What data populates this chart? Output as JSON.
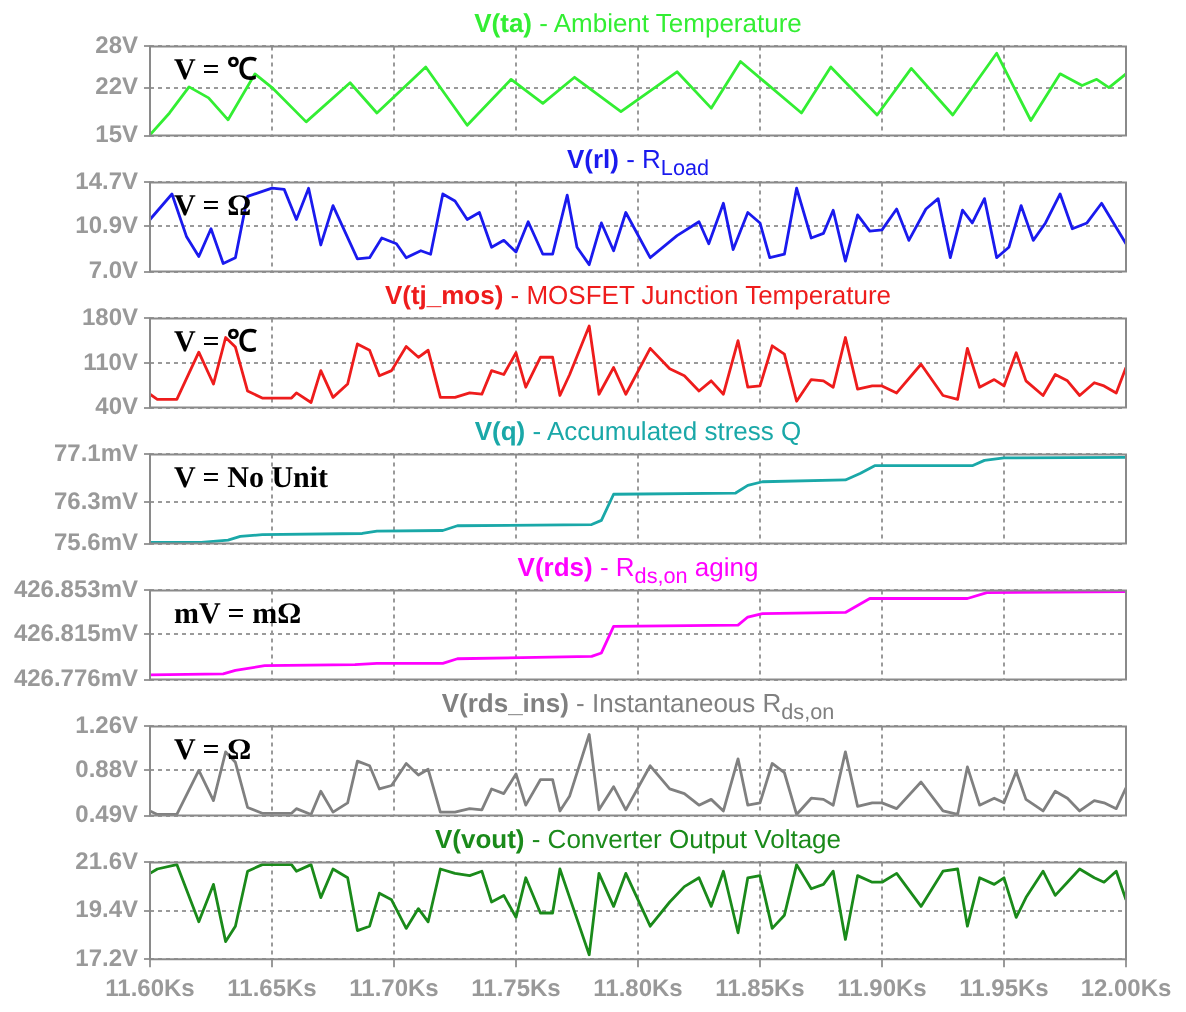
{
  "chart_data": [
    {
      "type": "line",
      "title": "V(ta) - Ambient Temperature",
      "color": "#33ee33",
      "annotations": [
        "V = ℃"
      ],
      "grid": true,
      "tick_labels": "y",
      "xlim": [
        11.6,
        12.0
      ],
      "xticks": [
        11.6,
        11.65,
        11.7,
        11.75,
        11.8,
        11.85,
        11.9,
        11.95,
        12.0
      ],
      "ylim": [
        15,
        28
      ],
      "yticks": [
        {
          "value": 15,
          "label": "15V"
        },
        {
          "value": 22,
          "label": "22V"
        },
        {
          "value": 28,
          "label": "28V"
        }
      ],
      "x": [
        11.6,
        11.608,
        11.616,
        11.624,
        11.632,
        11.643,
        11.65,
        11.664,
        11.682,
        11.693,
        11.713,
        11.73,
        11.748,
        11.761,
        11.774,
        11.793,
        11.816,
        11.83,
        11.842,
        11.867,
        11.879,
        11.898,
        11.912,
        11.929,
        11.947,
        11.961,
        11.973,
        11.982,
        11.988,
        11.993,
        12.0
      ],
      "values": [
        15.1,
        18.3,
        22.1,
        20.5,
        17.3,
        24,
        22,
        17,
        22.7,
        18.3,
        25,
        16.5,
        23.2,
        19.7,
        23.5,
        18.5,
        24.3,
        19,
        25.8,
        18.3,
        25,
        18,
        24.8,
        18,
        27,
        17.2,
        24,
        22.3,
        23.2,
        22,
        24
      ]
    },
    {
      "type": "line",
      "title": "V(rl) - R$_{Load}$",
      "color": "#1a1aee",
      "annotations": [
        "V = Ω"
      ],
      "grid": true,
      "tick_labels": "y",
      "xlim": [
        11.6,
        12.0
      ],
      "xticks": [
        11.6,
        11.65,
        11.7,
        11.75,
        11.8,
        11.85,
        11.9,
        11.95,
        12.0
      ],
      "ylim": [
        7.0,
        14.7
      ],
      "yticks": [
        {
          "value": 7.0,
          "label": "7.0V"
        },
        {
          "value": 10.9,
          "label": "10.9V"
        },
        {
          "value": 14.7,
          "label": "14.7V"
        }
      ],
      "x": [
        11.6,
        11.609,
        11.615,
        11.62,
        11.625,
        11.63,
        11.635,
        11.64,
        11.65,
        11.655,
        11.66,
        11.665,
        11.67,
        11.675,
        11.685,
        11.69,
        11.695,
        11.701,
        11.705,
        11.711,
        11.715,
        11.72,
        11.725,
        11.73,
        11.735,
        11.74,
        11.745,
        11.75,
        11.755,
        11.761,
        11.765,
        11.771,
        11.775,
        11.78,
        11.785,
        11.79,
        11.795,
        11.805,
        11.816,
        11.825,
        11.829,
        11.835,
        11.839,
        11.845,
        11.85,
        11.854,
        11.86,
        11.865,
        11.871,
        11.876,
        11.88,
        11.885,
        11.89,
        11.895,
        11.9,
        11.906,
        11.911,
        11.918,
        11.923,
        11.928,
        11.933,
        11.937,
        11.942,
        11.947,
        11.952,
        11.957,
        11.962,
        11.967,
        11.973,
        11.978,
        11.984,
        11.99,
        12.0
      ],
      "values": [
        11.5,
        13.7,
        10.0,
        8.3,
        10.7,
        7.7,
        8.2,
        13.5,
        14.2,
        14.1,
        11.5,
        14.2,
        9.3,
        12.7,
        8.1,
        8.2,
        9.9,
        9.4,
        8.2,
        8.8,
        8.5,
        13.7,
        13.1,
        11.5,
        12.1,
        9.1,
        9.7,
        8.7,
        11.3,
        8.5,
        8.5,
        13.6,
        9.1,
        7.6,
        11.2,
        8.8,
        12.1,
        8.2,
        10.1,
        11.3,
        9.4,
        12.9,
        8.9,
        12.1,
        11.2,
        8.2,
        8.5,
        14.2,
        9.9,
        10.3,
        12.3,
        7.9,
        11.9,
        10.5,
        10.6,
        12.4,
        9.7,
        12.4,
        13.3,
        8.2,
        12.3,
        11.2,
        13.3,
        8.2,
        9.1,
        12.7,
        9.7,
        11.2,
        13.7,
        10.7,
        11.2,
        12.9,
        9.4
      ]
    },
    {
      "type": "line",
      "title": "V(tj_mos) - MOSFET Junction Temperature",
      "color": "#ee1c1c",
      "annotations": [
        "V = ℃"
      ],
      "grid": true,
      "tick_labels": "y",
      "xlim": [
        11.6,
        12.0
      ],
      "xticks": [
        11.6,
        11.65,
        11.7,
        11.75,
        11.8,
        11.85,
        11.9,
        11.95,
        12.0
      ],
      "ylim": [
        40,
        180
      ],
      "yticks": [
        {
          "value": 40,
          "label": "40V"
        },
        {
          "value": 110,
          "label": "110V"
        },
        {
          "value": 180,
          "label": "180V"
        }
      ],
      "x": [
        11.6,
        11.603,
        11.611,
        11.62,
        11.626,
        11.631,
        11.635,
        11.64,
        11.646,
        11.658,
        11.66,
        11.666,
        11.67,
        11.675,
        11.681,
        11.685,
        11.69,
        11.694,
        11.699,
        11.705,
        11.71,
        11.714,
        11.719,
        11.725,
        11.731,
        11.736,
        11.74,
        11.745,
        11.75,
        11.754,
        11.76,
        11.765,
        11.768,
        11.772,
        11.78,
        11.784,
        11.79,
        11.795,
        11.805,
        11.813,
        11.819,
        11.825,
        11.83,
        11.835,
        11.841,
        11.845,
        11.85,
        11.855,
        11.86,
        11.865,
        11.871,
        11.876,
        11.88,
        11.885,
        11.89,
        11.896,
        11.9,
        11.906,
        11.916,
        11.925,
        11.931,
        11.935,
        11.94,
        11.946,
        11.95,
        11.955,
        11.959,
        11.966,
        11.971,
        11.976,
        11.981,
        11.987,
        11.991,
        11.996,
        12.0
      ],
      "values": [
        61,
        53,
        53,
        127,
        77,
        150,
        135,
        66,
        55,
        55,
        63,
        48,
        98,
        56,
        77,
        140,
        130,
        90,
        98,
        136,
        119,
        130,
        56,
        56,
        63,
        61,
        98,
        92,
        126,
        72,
        119,
        119,
        59,
        92,
        168,
        61,
        103,
        61,
        133,
        101,
        90,
        66,
        82,
        61,
        145,
        72,
        74,
        137,
        124,
        50,
        84,
        82,
        72,
        150,
        69,
        74,
        74,
        63,
        108,
        59,
        53,
        133,
        72,
        84,
        74,
        126,
        82,
        59,
        92,
        82,
        59,
        79,
        74,
        63,
        103
      ]
    },
    {
      "type": "line",
      "title": "V(q) - Accumulated stress Q",
      "color": "#1aa8a8",
      "annotations": [
        "V = No Unit"
      ],
      "grid": true,
      "tick_labels": "y",
      "xlim": [
        11.6,
        12.0
      ],
      "xticks": [
        11.6,
        11.65,
        11.7,
        11.75,
        11.8,
        11.85,
        11.9,
        11.95,
        12.0
      ],
      "ylim": [
        75.6,
        77.1
      ],
      "yticks": [
        {
          "value": 75.6,
          "label": "75.6mV"
        },
        {
          "value": 76.3,
          "label": "76.3mV"
        },
        {
          "value": 77.1,
          "label": "77.1mV"
        }
      ],
      "x": [
        11.6,
        11.621,
        11.632,
        11.637,
        11.646,
        11.687,
        11.693,
        11.72,
        11.726,
        11.781,
        11.785,
        11.79,
        11.84,
        11.845,
        11.851,
        11.885,
        11.891,
        11.897,
        11.937,
        11.942,
        11.95,
        12.0
      ],
      "values": [
        75.62,
        75.62,
        75.66,
        75.72,
        75.75,
        75.77,
        75.81,
        75.82,
        75.9,
        75.92,
        75.99,
        76.43,
        76.45,
        76.58,
        76.64,
        76.67,
        76.78,
        76.91,
        76.91,
        77.0,
        77.04,
        77.05
      ]
    },
    {
      "type": "line",
      "title": "V(rds) - R$_{ds,on}$ aging",
      "color": "#ff00ff",
      "annotations": [
        "mV = mΩ"
      ],
      "grid": true,
      "tick_labels": "y",
      "xlim": [
        11.6,
        12.0
      ],
      "xticks": [
        11.6,
        11.65,
        11.7,
        11.75,
        11.8,
        11.85,
        11.9,
        11.95,
        12.0
      ],
      "ylim": [
        426.776,
        426.853
      ],
      "yticks": [
        {
          "value": 426.776,
          "label": "426.776mV"
        },
        {
          "value": 426.815,
          "label": "426.815mV"
        },
        {
          "value": 426.853,
          "label": "426.853mV"
        }
      ],
      "x": [
        11.6,
        11.63,
        11.635,
        11.647,
        11.684,
        11.693,
        11.72,
        11.726,
        11.781,
        11.785,
        11.79,
        11.841,
        11.845,
        11.851,
        11.885,
        11.895,
        11.935,
        11.943,
        12.0
      ],
      "values": [
        426.78,
        426.781,
        426.784,
        426.788,
        426.789,
        426.79,
        426.79,
        426.794,
        426.796,
        426.799,
        426.822,
        426.823,
        426.83,
        426.833,
        426.834,
        426.846,
        426.846,
        426.851,
        426.852
      ]
    },
    {
      "type": "line",
      "title": "V(rds_ins) - Instantaneous R$_{ds,on}$",
      "color": "#808080",
      "annotations": [
        "V = Ω"
      ],
      "grid": true,
      "tick_labels": "y",
      "xlim": [
        11.6,
        12.0
      ],
      "xticks": [
        11.6,
        11.65,
        11.7,
        11.75,
        11.8,
        11.85,
        11.9,
        11.95,
        12.0
      ],
      "ylim": [
        0.49,
        1.26
      ],
      "yticks": [
        {
          "value": 0.49,
          "label": "0.49V"
        },
        {
          "value": 0.88,
          "label": "0.88V"
        },
        {
          "value": 1.26,
          "label": "1.26V"
        }
      ],
      "x": [
        11.6,
        11.603,
        11.611,
        11.62,
        11.626,
        11.631,
        11.635,
        11.64,
        11.646,
        11.658,
        11.66,
        11.666,
        11.67,
        11.675,
        11.681,
        11.685,
        11.69,
        11.694,
        11.699,
        11.705,
        11.71,
        11.714,
        11.719,
        11.725,
        11.731,
        11.736,
        11.74,
        11.745,
        11.75,
        11.754,
        11.76,
        11.765,
        11.768,
        11.772,
        11.78,
        11.784,
        11.79,
        11.795,
        11.805,
        11.813,
        11.819,
        11.825,
        11.83,
        11.835,
        11.841,
        11.845,
        11.85,
        11.855,
        11.86,
        11.865,
        11.871,
        11.876,
        11.88,
        11.885,
        11.89,
        11.896,
        11.9,
        11.906,
        11.916,
        11.925,
        11.931,
        11.935,
        11.94,
        11.946,
        11.95,
        11.955,
        11.959,
        11.966,
        11.971,
        11.976,
        11.981,
        11.987,
        11.991,
        11.996,
        12.0
      ],
      "values": [
        0.53,
        0.5,
        0.5,
        0.88,
        0.62,
        1.04,
        0.95,
        0.56,
        0.51,
        0.51,
        0.55,
        0.5,
        0.7,
        0.52,
        0.6,
        0.96,
        0.92,
        0.72,
        0.75,
        0.94,
        0.84,
        0.89,
        0.52,
        0.52,
        0.55,
        0.54,
        0.72,
        0.68,
        0.85,
        0.58,
        0.8,
        0.8,
        0.53,
        0.66,
        1.19,
        0.54,
        0.74,
        0.54,
        0.92,
        0.72,
        0.68,
        0.58,
        0.63,
        0.53,
        0.98,
        0.58,
        0.6,
        0.94,
        0.86,
        0.5,
        0.64,
        0.63,
        0.58,
        1.04,
        0.57,
        0.6,
        0.6,
        0.55,
        0.78,
        0.53,
        0.5,
        0.91,
        0.58,
        0.64,
        0.6,
        0.87,
        0.63,
        0.53,
        0.7,
        0.64,
        0.53,
        0.62,
        0.6,
        0.55,
        0.73
      ]
    },
    {
      "type": "line",
      "title": "V(vout) - Converter Output Voltage",
      "color": "#1a8a1a",
      "grid": true,
      "xlim": [
        11.6,
        12.0
      ],
      "xticks": [
        {
          "value": 11.6,
          "label": "11.60Ks"
        },
        {
          "value": 11.65,
          "label": "11.65Ks"
        },
        {
          "value": 11.7,
          "label": "11.70Ks"
        },
        {
          "value": 11.75,
          "label": "11.75Ks"
        },
        {
          "value": 11.8,
          "label": "11.80Ks"
        },
        {
          "value": 11.85,
          "label": "11.85Ks"
        },
        {
          "value": 11.9,
          "label": "11.90Ks"
        },
        {
          "value": 11.95,
          "label": "11.95Ks"
        },
        {
          "value": 12.0,
          "label": "12.00Ks"
        }
      ],
      "ylim": [
        17.2,
        21.6
      ],
      "yticks": [
        {
          "value": 17.2,
          "label": "17.2V"
        },
        {
          "value": 19.4,
          "label": "19.4V"
        },
        {
          "value": 21.6,
          "label": "21.6V"
        }
      ],
      "x": [
        11.6,
        11.603,
        11.611,
        11.62,
        11.626,
        11.631,
        11.635,
        11.64,
        11.646,
        11.658,
        11.66,
        11.666,
        11.67,
        11.675,
        11.681,
        11.685,
        11.69,
        11.694,
        11.699,
        11.705,
        11.71,
        11.714,
        11.719,
        11.725,
        11.731,
        11.736,
        11.74,
        11.745,
        11.75,
        11.754,
        11.76,
        11.765,
        11.768,
        11.772,
        11.78,
        11.784,
        11.79,
        11.795,
        11.805,
        11.813,
        11.819,
        11.825,
        11.83,
        11.835,
        11.841,
        11.845,
        11.85,
        11.855,
        11.86,
        11.865,
        11.871,
        11.876,
        11.88,
        11.885,
        11.89,
        11.896,
        11.9,
        11.906,
        11.916,
        11.925,
        11.931,
        11.935,
        11.94,
        11.946,
        11.95,
        11.955,
        11.959,
        11.966,
        11.971,
        11.976,
        11.981,
        11.987,
        11.991,
        11.996,
        12.0
      ],
      "values": [
        21.1,
        21.3,
        21.5,
        18.9,
        20.6,
        18.0,
        18.7,
        21.2,
        21.5,
        21.5,
        21.2,
        21.5,
        20.0,
        21.3,
        20.9,
        18.5,
        18.7,
        20.2,
        19.9,
        18.6,
        19.5,
        18.9,
        21.3,
        21.1,
        21.0,
        21.2,
        19.8,
        20.1,
        19.1,
        20.9,
        19.3,
        19.3,
        21.3,
        20.0,
        17.4,
        21.1,
        19.6,
        21.1,
        18.7,
        19.8,
        20.5,
        20.9,
        19.6,
        21.2,
        18.4,
        20.9,
        21.0,
        18.6,
        19.2,
        21.5,
        20.4,
        20.6,
        21.2,
        18.1,
        21.0,
        20.7,
        20.7,
        21.1,
        19.6,
        21.2,
        21.3,
        18.7,
        20.9,
        20.6,
        20.9,
        19.1,
        20.0,
        21.2,
        20.1,
        20.7,
        21.3,
        20.9,
        20.7,
        21.2,
        19.9
      ]
    }
  ]
}
